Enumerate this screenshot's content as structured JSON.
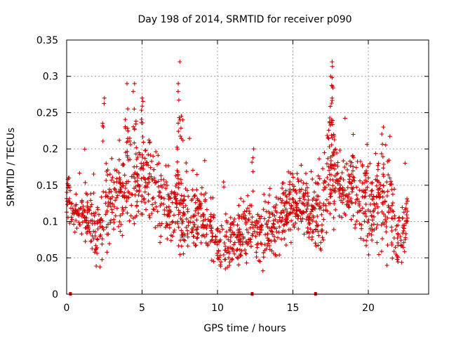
{
  "chart_data": {
    "type": "scatter",
    "title": "Day 198 of 2014, SRMTID for receiver p090",
    "xlabel": "GPS time / hours",
    "ylabel": "SRMTID / TECUs",
    "xlim": [
      0,
      24
    ],
    "ylim": [
      0,
      0.35
    ],
    "x_ticks": [
      0,
      5,
      10,
      15,
      20
    ],
    "x_tick_labels": [
      "0",
      "5",
      "10",
      "15",
      "20"
    ],
    "y_ticks": [
      0,
      0.05,
      0.1,
      0.15,
      0.2,
      0.25,
      0.3,
      0.35
    ],
    "y_tick_labels": [
      "0",
      "0.05",
      "0.1",
      "0.15",
      "0.2",
      "0.25",
      "0.3",
      "0.35"
    ],
    "grid": true,
    "series": [
      {
        "name": "SRMTID",
        "color": "#d00000",
        "marker": "plus",
        "profile_hours": [
          0,
          1,
          2,
          2.5,
          3,
          4,
          5,
          6,
          7,
          7.5,
          8,
          9,
          10,
          11,
          12,
          13,
          14,
          15,
          16,
          17,
          17.5,
          18,
          19,
          20,
          21,
          21.5,
          22,
          22.6
        ],
        "profile_median": [
          0.13,
          0.11,
          0.09,
          0.11,
          0.12,
          0.16,
          0.17,
          0.14,
          0.11,
          0.12,
          0.1,
          0.11,
          0.07,
          0.07,
          0.09,
          0.08,
          0.1,
          0.13,
          0.12,
          0.11,
          0.17,
          0.15,
          0.14,
          0.12,
          0.13,
          0.11,
          0.07,
          0.11
        ],
        "profile_spread": [
          0.03,
          0.03,
          0.04,
          0.06,
          0.05,
          0.06,
          0.06,
          0.05,
          0.04,
          0.06,
          0.04,
          0.04,
          0.03,
          0.03,
          0.04,
          0.03,
          0.04,
          0.04,
          0.04,
          0.05,
          0.08,
          0.05,
          0.05,
          0.05,
          0.06,
          0.06,
          0.04,
          0.03
        ],
        "peaks": [
          [
            2.5,
            0.27
          ],
          [
            4.0,
            0.29
          ],
          [
            4.5,
            0.29
          ],
          [
            5.0,
            0.27
          ],
          [
            7.5,
            0.32
          ],
          [
            7.4,
            0.29
          ],
          [
            7.7,
            0.24
          ],
          [
            12.4,
            0.2
          ],
          [
            17.6,
            0.32
          ],
          [
            17.5,
            0.3
          ],
          [
            17.6,
            0.27
          ],
          [
            19.0,
            0.22
          ],
          [
            21.0,
            0.23
          ]
        ]
      }
    ],
    "data_gaps_hours": [
      0.25,
      12.3,
      16.5
    ]
  }
}
